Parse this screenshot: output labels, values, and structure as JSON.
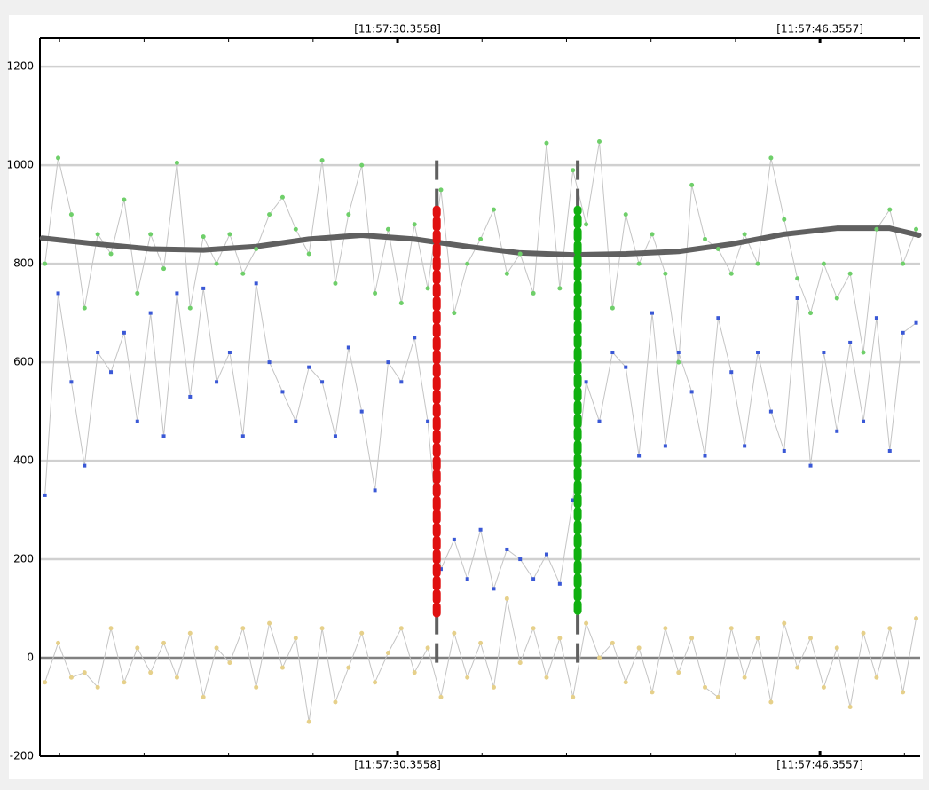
{
  "chart_data": {
    "type": "line",
    "xlim": [
      16.81,
      50.15
    ],
    "ylim": [
      -200,
      1258
    ],
    "yticks": [
      -200,
      0,
      200,
      400,
      600,
      800,
      1000,
      1200
    ],
    "xticks": [
      {
        "value": 30.3558,
        "label": "[11:57:30.3558]"
      },
      {
        "value": 46.3557,
        "label": "[11:57:46.3557]"
      }
    ],
    "xminorticks": [
      17.5558,
      20.7558,
      23.9558,
      27.1558,
      33.5558,
      36.7558,
      39.9558,
      43.1558,
      49.5558
    ],
    "grid": true,
    "x": [
      17.0,
      17.5,
      18.0,
      18.5,
      19.0,
      19.5,
      20.0,
      20.5,
      21.0,
      21.5,
      22.0,
      22.5,
      23.0,
      23.5,
      24.0,
      24.5,
      25.0,
      25.5,
      26.0,
      26.5,
      27.0,
      27.5,
      28.0,
      28.5,
      29.0,
      29.5,
      30.0,
      30.5,
      31.0,
      31.5,
      32.0,
      32.5,
      33.0,
      33.5,
      34.0,
      34.5,
      35.0,
      35.5,
      36.0,
      36.5,
      37.0,
      37.5,
      38.0,
      38.5,
      39.0,
      39.5,
      40.0,
      40.5,
      41.0,
      41.5,
      42.0,
      42.5,
      43.0,
      43.5,
      44.0,
      44.5,
      45.0,
      45.5,
      46.0,
      46.5,
      47.0,
      47.5,
      48.0,
      48.5,
      49.0,
      49.5,
      50.0
    ],
    "series": [
      {
        "color": "#6fcf6a",
        "marker": "circle",
        "values": [
          800,
          1015,
          900,
          710,
          860,
          820,
          930,
          740,
          860,
          790,
          1005,
          710,
          855,
          800,
          860,
          780,
          830,
          900,
          935,
          870,
          820,
          1010,
          760,
          900,
          1000,
          740,
          870,
          720,
          880,
          750,
          950,
          700,
          800,
          850,
          910,
          780,
          820,
          740,
          1045,
          750,
          990,
          880,
          1048,
          710,
          900,
          800,
          860,
          780,
          600,
          960,
          850,
          830,
          780,
          860,
          800,
          1015,
          890,
          770,
          700,
          800,
          730,
          780,
          620,
          870,
          910,
          800,
          870
        ]
      },
      {
        "color": "#3a58d6",
        "marker": "square",
        "values": [
          330,
          740,
          560,
          390,
          620,
          580,
          660,
          480,
          700,
          450,
          740,
          530,
          750,
          560,
          620,
          450,
          760,
          600,
          540,
          480,
          590,
          560,
          450,
          630,
          500,
          340,
          600,
          560,
          650,
          480,
          180,
          240,
          160,
          260,
          140,
          220,
          200,
          160,
          210,
          150,
          320,
          560,
          480,
          620,
          590,
          410,
          700,
          430,
          620,
          540,
          410,
          690,
          580,
          430,
          620,
          500,
          420,
          730,
          390,
          620,
          460,
          640,
          480,
          690,
          420,
          660,
          680
        ]
      },
      {
        "color": "#e6d08a",
        "marker": "circle",
        "values": [
          -50,
          30,
          -40,
          -30,
          -60,
          60,
          -50,
          20,
          -30,
          30,
          -40,
          50,
          -80,
          20,
          -10,
          60,
          -60,
          70,
          -20,
          40,
          -130,
          60,
          -90,
          -20,
          50,
          -50,
          10,
          60,
          -30,
          20,
          -80,
          50,
          -40,
          30,
          -60,
          120,
          -10,
          60,
          -40,
          40,
          -80,
          70,
          0,
          30,
          -50,
          20,
          -70,
          60,
          -30,
          40,
          -60,
          -80,
          60,
          -40,
          40,
          -90,
          70,
          -20,
          40,
          -60,
          20,
          -100,
          50,
          -40,
          60,
          -70,
          80
        ]
      }
    ],
    "trend": {
      "color": "#606060",
      "x": [
        16.9,
        19,
        21,
        23,
        25,
        27,
        29,
        31,
        33,
        35,
        37,
        39,
        41,
        43,
        45,
        47,
        49,
        50.1
      ],
      "values": [
        852,
        840,
        830,
        828,
        835,
        850,
        858,
        850,
        835,
        822,
        818,
        820,
        825,
        840,
        860,
        872,
        872,
        858
      ]
    },
    "markers": [
      {
        "x": 31.84,
        "color": "#e01010",
        "ymin": 90,
        "ymax": 910,
        "guide": [
          -10,
          1010
        ]
      },
      {
        "x": 37.18,
        "color": "#10b010",
        "ymin": 95,
        "ymax": 910,
        "guide": [
          -10,
          1010
        ]
      }
    ]
  }
}
